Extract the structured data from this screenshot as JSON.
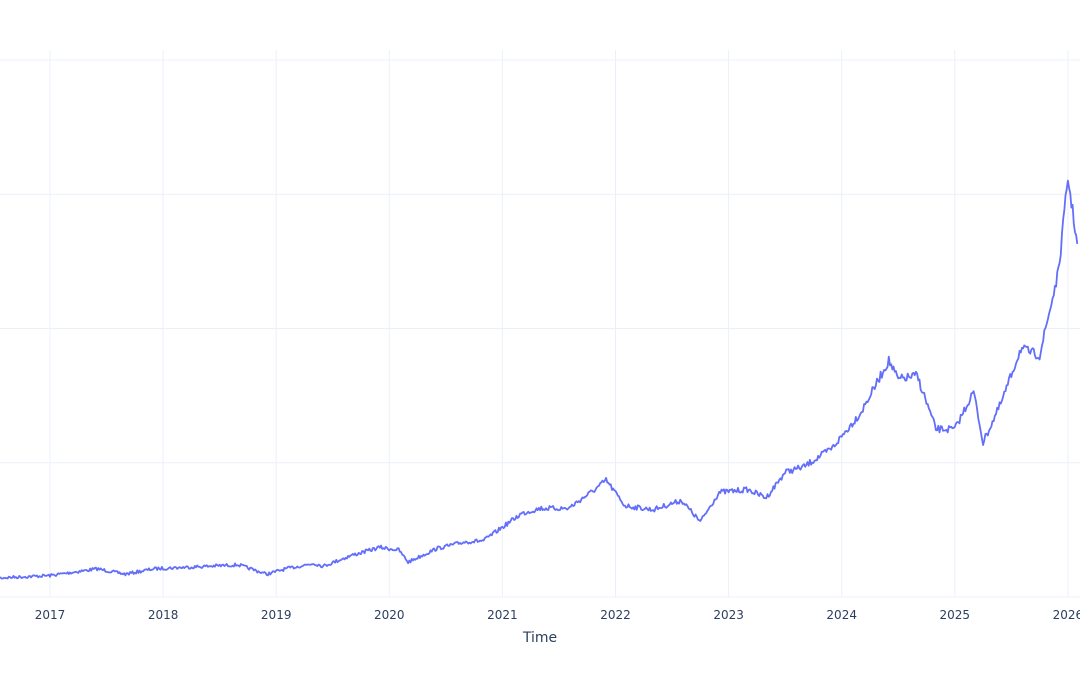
{
  "chart_data": {
    "type": "line",
    "title": "",
    "xlabel": "Time",
    "ylabel": "",
    "y_tick_labels_visible": false,
    "y_units_note": "y-axis labels cropped; values expressed in gridline units (0 = bottom gridline, 4 = top gridline)",
    "grid": true,
    "legend": null,
    "line_color": "#636efa",
    "x_ticks": [
      "2017",
      "2018",
      "2019",
      "2020",
      "2021",
      "2022",
      "2023",
      "2024",
      "2025",
      "2026"
    ],
    "ylim": [
      0,
      4
    ],
    "series": [
      {
        "name": "series",
        "x": [
          "2016-07",
          "2016-10",
          "2017-01",
          "2017-04",
          "2017-06",
          "2017-09",
          "2017-12",
          "2018-03",
          "2018-06",
          "2018-09",
          "2018-12",
          "2019-02",
          "2019-05",
          "2019-06",
          "2019-09",
          "2019-12",
          "2020-02",
          "2020-03",
          "2020-06",
          "2020-09",
          "2020-11",
          "2021-01",
          "2021-03",
          "2021-05",
          "2021-08",
          "2021-11",
          "2021-12",
          "2022-02",
          "2022-05",
          "2022-08",
          "2022-10",
          "2022-12",
          "2023-03",
          "2023-05",
          "2023-07",
          "2023-09",
          "2023-12",
          "2024-03",
          "2024-06",
          "2024-07",
          "2024-09",
          "2024-11",
          "2025-01",
          "2025-03",
          "2025-04",
          "2025-06",
          "2025-08",
          "2025-10",
          "2025-12",
          "2026-01",
          "2026-02"
        ],
        "values": [
          0.14,
          0.15,
          0.16,
          0.19,
          0.21,
          0.17,
          0.21,
          0.22,
          0.23,
          0.24,
          0.17,
          0.21,
          0.25,
          0.23,
          0.31,
          0.37,
          0.35,
          0.26,
          0.36,
          0.41,
          0.42,
          0.52,
          0.62,
          0.66,
          0.66,
          0.81,
          0.87,
          0.68,
          0.65,
          0.72,
          0.56,
          0.78,
          0.8,
          0.74,
          0.93,
          0.97,
          1.11,
          1.37,
          1.76,
          1.62,
          1.65,
          1.25,
          1.25,
          1.53,
          1.15,
          1.46,
          1.85,
          1.8,
          2.42,
          3.12,
          2.63
        ]
      }
    ]
  },
  "axes": {
    "x_title": "Time",
    "x_tick_labels": [
      "2017",
      "2018",
      "2019",
      "2020",
      "2021",
      "2022",
      "2023",
      "2024",
      "2025",
      "2026"
    ]
  }
}
